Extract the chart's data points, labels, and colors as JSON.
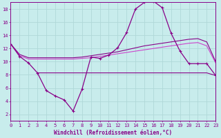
{
  "background_color": "#c8ecec",
  "grid_color": "#b0d8d8",
  "line_color_dark": "#880088",
  "line_color_light": "#cc44cc",
  "x_min": 0,
  "x_max": 23,
  "y_min": 1,
  "y_max": 19,
  "xlabel": "Windchill (Refroidissement éolien,°C)",
  "xlabel_fontsize": 5.5,
  "yticks": [
    2,
    4,
    6,
    8,
    10,
    12,
    14,
    16,
    18
  ],
  "xticks": [
    0,
    1,
    2,
    3,
    4,
    5,
    6,
    7,
    8,
    9,
    10,
    11,
    12,
    13,
    14,
    15,
    16,
    17,
    18,
    19,
    20,
    21,
    22,
    23
  ],
  "series1_x": [
    0,
    1,
    2,
    3,
    4,
    5,
    6,
    7,
    8,
    9,
    10,
    11,
    12,
    13,
    14,
    15,
    16,
    17,
    18,
    19,
    20,
    21,
    22,
    23
  ],
  "series1_y": [
    12.7,
    10.8,
    9.8,
    8.3,
    5.6,
    4.8,
    4.2,
    2.5,
    5.8,
    10.7,
    10.5,
    11.0,
    12.1,
    14.4,
    18.0,
    19.0,
    19.2,
    18.2,
    14.3,
    11.6,
    9.7,
    9.7,
    9.7,
    7.9
  ],
  "series2_x": [
    3,
    4,
    5,
    6,
    7,
    8,
    9,
    10,
    11,
    12,
    13,
    14,
    15,
    16,
    17,
    18,
    19,
    20,
    21,
    22,
    23
  ],
  "series2_y": [
    8.3,
    8.3,
    8.3,
    8.3,
    8.3,
    8.3,
    8.3,
    8.3,
    8.3,
    8.3,
    8.3,
    8.3,
    8.3,
    8.3,
    8.3,
    8.3,
    8.3,
    8.3,
    8.3,
    8.3,
    7.9
  ],
  "series3_x": [
    0,
    1,
    2,
    3,
    4,
    5,
    6,
    7,
    8,
    9,
    10,
    11,
    12,
    13,
    14,
    15,
    16,
    17,
    18,
    19,
    20,
    21,
    22,
    23
  ],
  "series3_y": [
    12.7,
    10.9,
    10.4,
    10.4,
    10.4,
    10.4,
    10.4,
    10.4,
    10.5,
    10.6,
    10.8,
    11.0,
    11.2,
    11.4,
    11.6,
    11.8,
    12.0,
    12.2,
    12.4,
    12.6,
    12.8,
    12.9,
    12.4,
    9.8
  ],
  "series4_x": [
    0,
    1,
    2,
    3,
    4,
    5,
    6,
    7,
    8,
    9,
    10,
    11,
    12,
    13,
    14,
    15,
    16,
    17,
    18,
    19,
    20,
    21,
    22,
    23
  ],
  "series4_y": [
    12.7,
    11.1,
    10.6,
    10.6,
    10.6,
    10.6,
    10.6,
    10.6,
    10.7,
    10.9,
    11.1,
    11.3,
    11.5,
    11.8,
    12.1,
    12.4,
    12.6,
    12.8,
    13.0,
    13.2,
    13.4,
    13.5,
    13.0,
    10.0
  ]
}
